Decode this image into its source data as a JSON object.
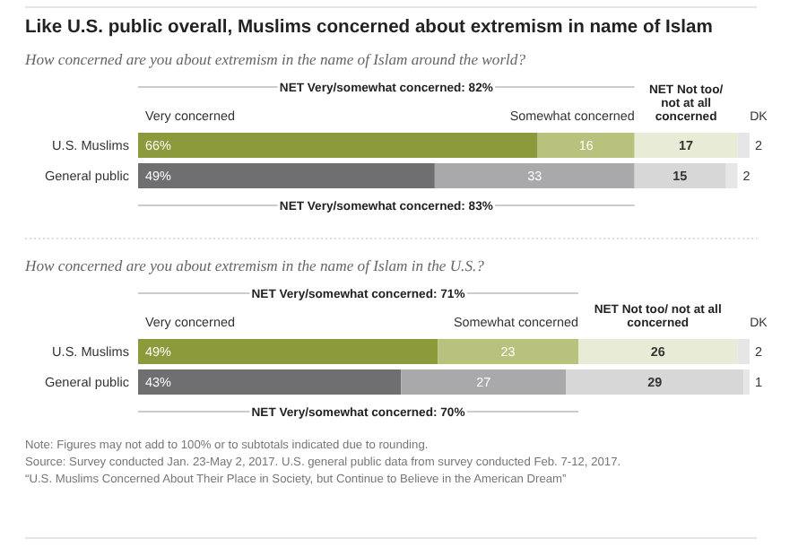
{
  "chart_data": [
    {
      "type": "bar",
      "orientation": "horizontal",
      "stacked": true,
      "title": "Like U.S. public overall, Muslims concerned about extremism in name of Islam",
      "subtitle": "How concerned are you about extremism in the name of Islam around the world?",
      "categories": [
        "U.S. Muslims",
        "General public"
      ],
      "series": [
        {
          "name": "Very concerned",
          "colors": [
            "#8c9a3c",
            "#6f6f71"
          ],
          "values": [
            66,
            49
          ],
          "value_labels": [
            "66%",
            "49%"
          ]
        },
        {
          "name": "Somewhat concerned",
          "colors": [
            "#b9c27c",
            "#a9a9ab"
          ],
          "values": [
            16,
            33
          ],
          "value_labels": [
            "16",
            "33"
          ]
        },
        {
          "name": "NET Not too/ not at all concerned",
          "colors": [
            "#e8ebd6",
            "#d7d7d8"
          ],
          "values": [
            17,
            15
          ],
          "value_labels": [
            "17",
            "15"
          ]
        },
        {
          "name": "DK",
          "colors": [
            "#e6e6e6",
            "#e6e6e6"
          ],
          "values": [
            2,
            2
          ],
          "value_labels": [
            "2",
            "2"
          ]
        }
      ],
      "annotations": [
        "NET Very/somewhat concerned: 82%",
        "NET Very/somewhat concerned: 83%"
      ]
    },
    {
      "type": "bar",
      "orientation": "horizontal",
      "stacked": true,
      "subtitle": "How concerned are you about extremism in the name of Islam in the U.S.?",
      "categories": [
        "U.S. Muslims",
        "General public"
      ],
      "series": [
        {
          "name": "Very concerned",
          "colors": [
            "#8c9a3c",
            "#6f6f71"
          ],
          "values": [
            49,
            43
          ],
          "value_labels": [
            "49%",
            "43%"
          ]
        },
        {
          "name": "Somewhat concerned",
          "colors": [
            "#b9c27c",
            "#a9a9ab"
          ],
          "values": [
            23,
            27
          ],
          "value_labels": [
            "23",
            "27"
          ]
        },
        {
          "name": "NET Not too/ not at all concerned",
          "colors": [
            "#e8ebd6",
            "#d7d7d8"
          ],
          "values": [
            26,
            29
          ],
          "value_labels": [
            "26",
            "29"
          ]
        },
        {
          "name": "DK",
          "colors": [
            "#e6e6e6",
            "#e6e6e6"
          ],
          "values": [
            2,
            1
          ],
          "value_labels": [
            "2",
            "1"
          ]
        }
      ],
      "annotations": [
        "NET Very/somewhat concerned: 71%",
        "NET Very/somewhat concerned: 70%",
        "Note: Figures may not add to 100% or to subtotals indicated due to rounding.",
        "Source: Survey conducted Jan. 23-May 2, 2017. U.S. general public data from survey conducted Feb. 7-12, 2017.",
        "“U.S. Muslims Concerned About Their Place in Society, but Continue to Believe in the American Dream”"
      ]
    }
  ]
}
